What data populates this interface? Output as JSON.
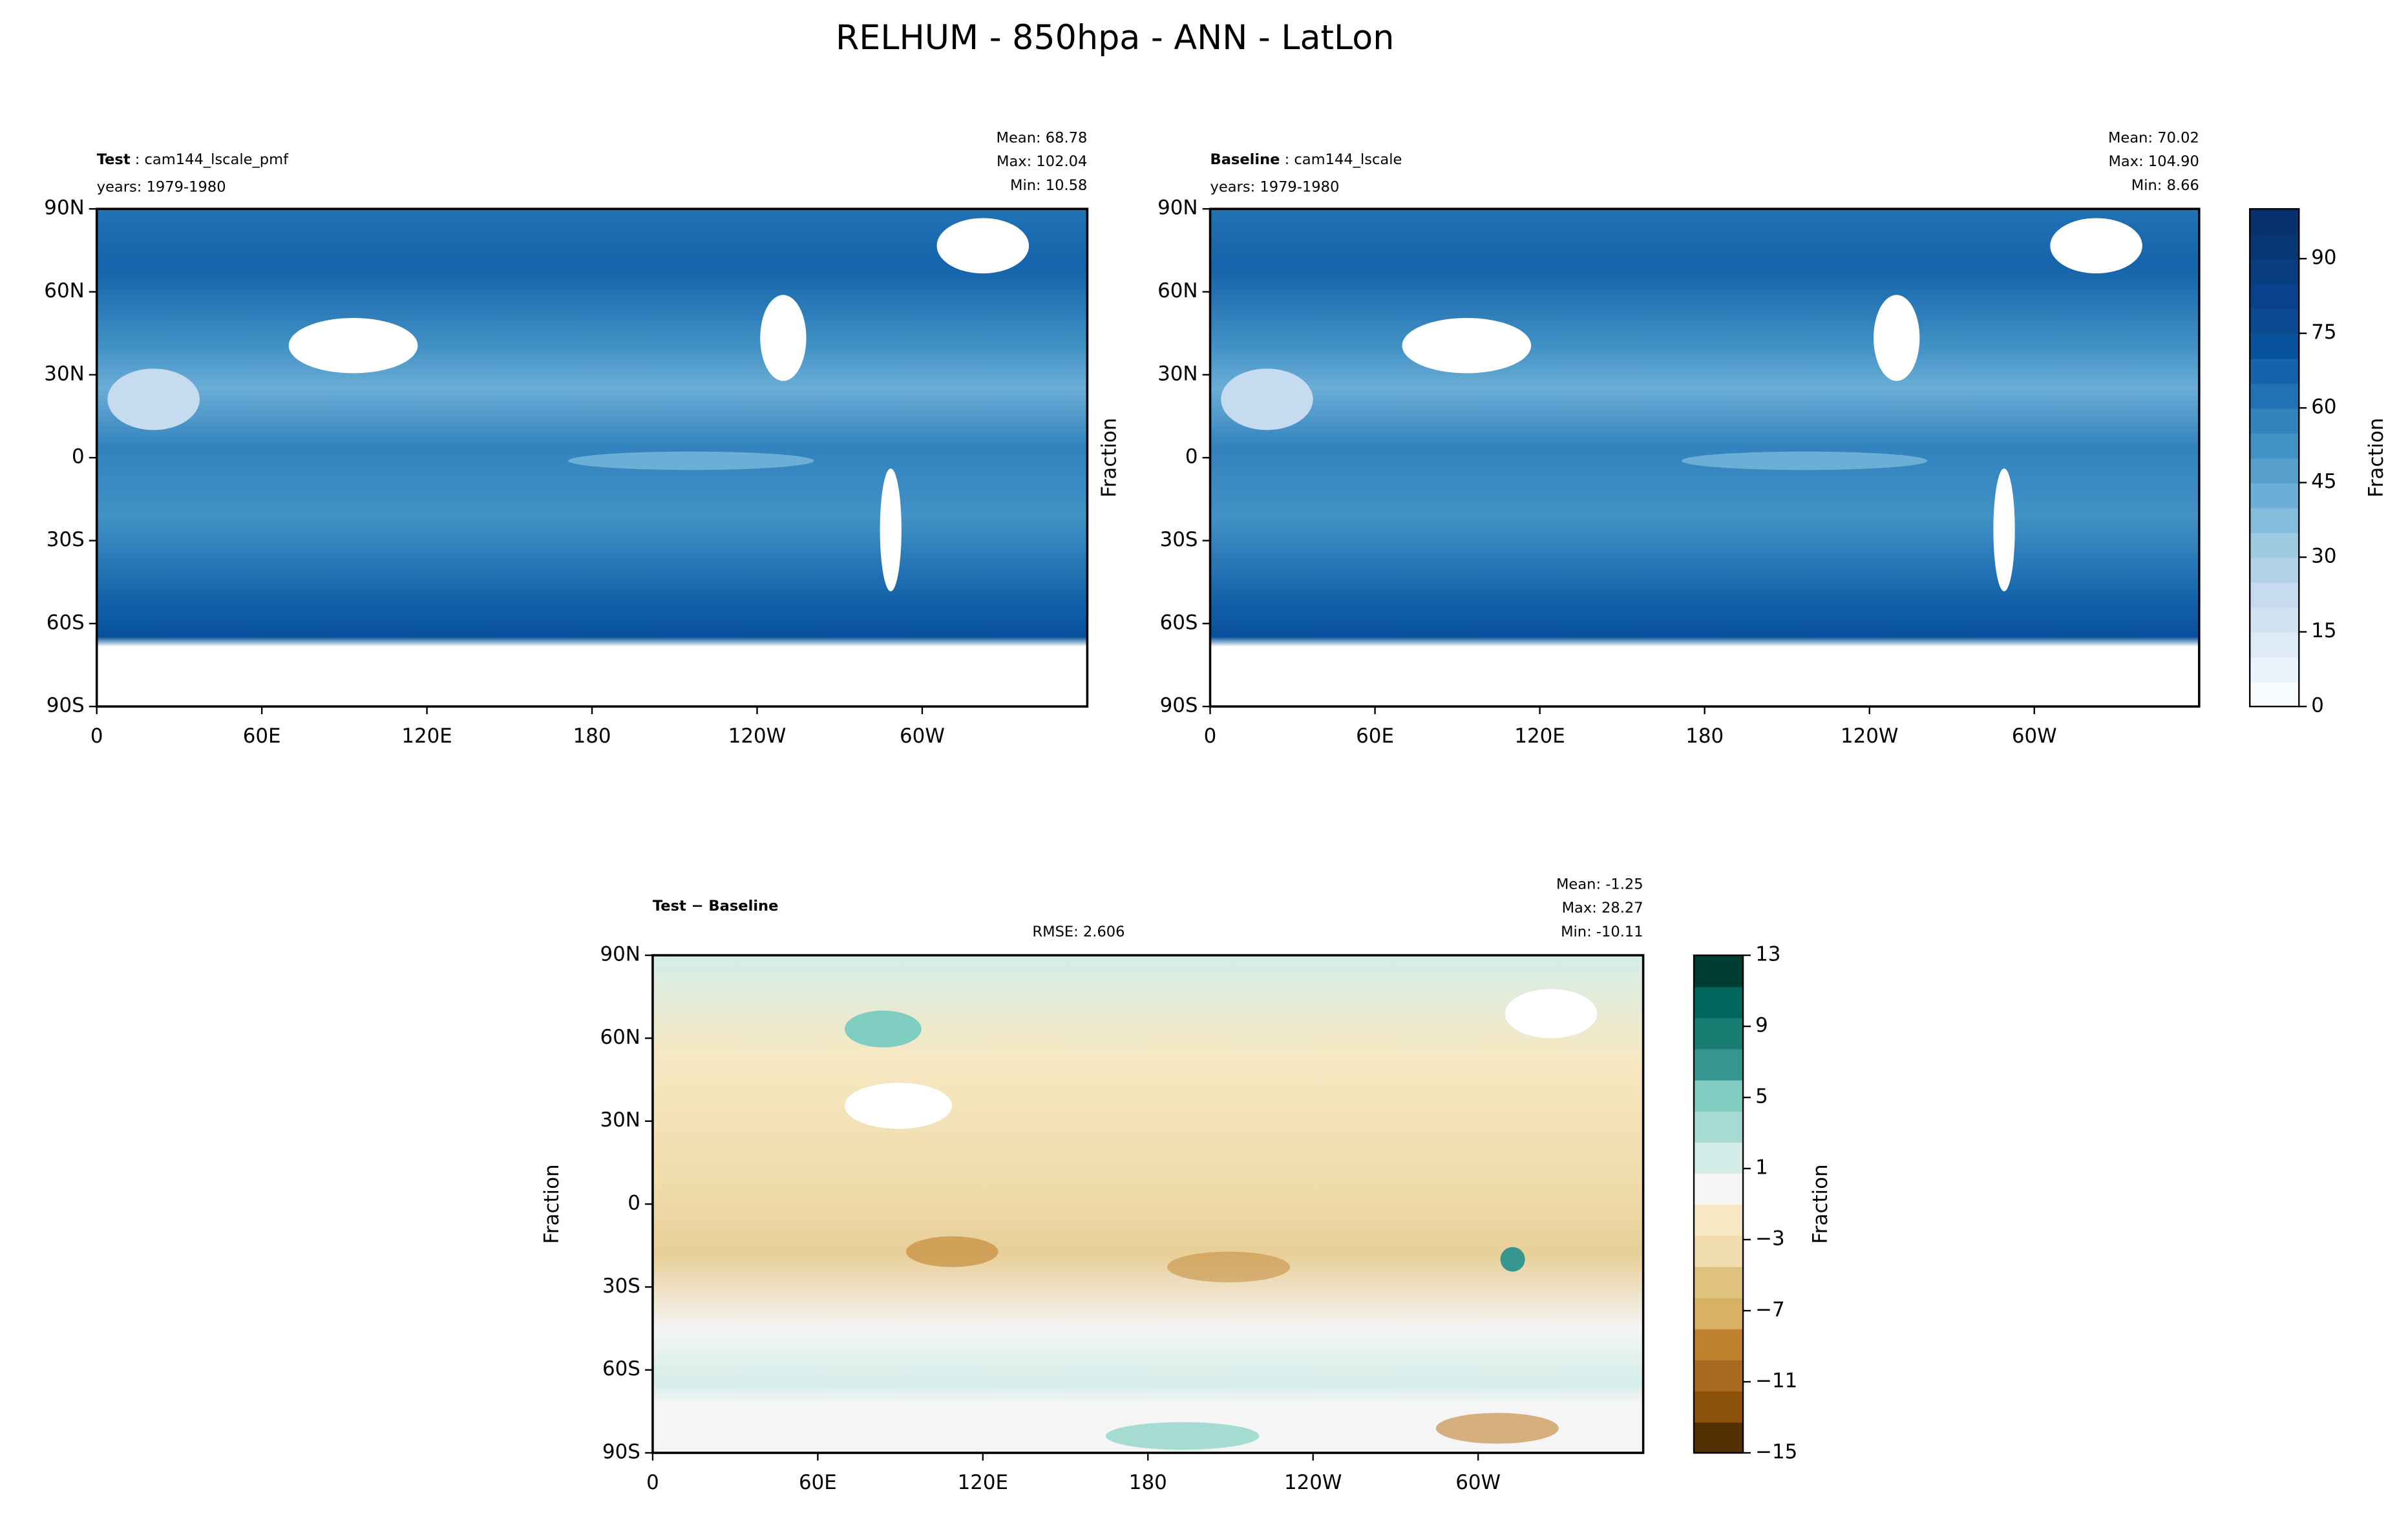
{
  "title": "RELHUM - 850hpa - ANN - LatLon",
  "chart_data": [
    {
      "type": "contour-map",
      "name": "Test",
      "case": ": cam144_lscale_pmf",
      "years": "years: 1979-1980",
      "stats": [
        "Mean: 68.78",
        "Max: 102.04",
        "Min: 10.58"
      ],
      "xlim": [
        0,
        360
      ],
      "ylim": [
        -90,
        90
      ],
      "xticks": [
        0,
        {
          "value": 60,
          "label": "60E"
        },
        {
          "value": 120,
          "label": "120E"
        },
        180,
        {
          "value": 240,
          "label": "120W"
        },
        {
          "value": 300,
          "label": "60W"
        }
      ],
      "yticks": [
        {
          "value": 90,
          "label": "90N"
        },
        {
          "value": 60,
          "label": "60N"
        },
        {
          "value": 30,
          "label": "30N"
        },
        0,
        {
          "value": -30,
          "label": "30S"
        },
        {
          "value": -60,
          "label": "60S"
        },
        {
          "value": -90,
          "label": "90S"
        }
      ]
    },
    {
      "type": "contour-map",
      "name": "Baseline",
      "case": ": cam144_lscale",
      "years": "years: 1979-1980",
      "stats": [
        "Mean: 70.02",
        "Max: 104.90",
        "Min:  8.66"
      ],
      "ylabel": "Fraction",
      "xlim": [
        0,
        360
      ],
      "ylim": [
        -90,
        90
      ],
      "xticks": [
        0,
        {
          "value": 60,
          "label": "60E"
        },
        {
          "value": 120,
          "label": "120E"
        },
        180,
        {
          "value": 240,
          "label": "120W"
        },
        {
          "value": 300,
          "label": "60W"
        }
      ],
      "yticks": [
        {
          "value": 90,
          "label": "90N"
        },
        {
          "value": 60,
          "label": "60N"
        },
        {
          "value": 30,
          "label": "30N"
        },
        0,
        {
          "value": -30,
          "label": "30S"
        },
        {
          "value": -60,
          "label": "60S"
        },
        {
          "value": -90,
          "label": "90S"
        }
      ],
      "colorbar": {
        "label": "Fraction",
        "lim": [
          0,
          100
        ],
        "ticks": [
          0,
          15,
          30,
          45,
          60,
          75,
          90
        ],
        "colors": [
          "#f7fbff",
          "#eaf2fb",
          "#deebf7",
          "#d1e2f3",
          "#c6dbef",
          "#b1d2e7",
          "#9ecae1",
          "#84bcdb",
          "#6baed6",
          "#57a0ce",
          "#4292c6",
          "#3282be",
          "#2171b5",
          "#1563aa",
          "#08519c",
          "#0a4a90",
          "#08428a",
          "#083d7f",
          "#083675",
          "#08306b"
        ]
      }
    },
    {
      "type": "contour-map",
      "name": "Test − Baseline",
      "rmse": "RMSE: 2.606",
      "stats": [
        "Mean: -1.25",
        "Max: 28.27",
        "Min: -10.11"
      ],
      "ylabel": "Fraction",
      "xlim": [
        0,
        360
      ],
      "ylim": [
        -90,
        90
      ],
      "xticks": [
        0,
        {
          "value": 60,
          "label": "60E"
        },
        {
          "value": 120,
          "label": "120E"
        },
        180,
        {
          "value": 240,
          "label": "120W"
        },
        {
          "value": 300,
          "label": "60W"
        }
      ],
      "yticks": [
        {
          "value": 90,
          "label": "90N"
        },
        {
          "value": 60,
          "label": "60N"
        },
        {
          "value": 30,
          "label": "30N"
        },
        0,
        {
          "value": -30,
          "label": "30S"
        },
        {
          "value": -60,
          "label": "60S"
        },
        {
          "value": -90,
          "label": "90S"
        }
      ],
      "colorbar": {
        "label": "Fraction",
        "lim": [
          -15,
          13
        ],
        "ticks": [
          {
            "value": -15,
            "label": "−15"
          },
          {
            "value": -11,
            "label": "−11"
          },
          {
            "value": -7,
            "label": "−7"
          },
          {
            "value": -3,
            "label": "−3"
          },
          1,
          5,
          9,
          13
        ],
        "colors": [
          "#543005",
          "#8c510a",
          "#a86a1f",
          "#bf812d",
          "#d7b265",
          "#dfc27d",
          "#f0dcac",
          "#f6e8c3",
          "#f5f5f5",
          "#d4ede8",
          "#a5dcd2",
          "#80cdc1",
          "#35978f",
          "#1a7d72",
          "#01665e",
          "#003c30"
        ]
      }
    }
  ]
}
